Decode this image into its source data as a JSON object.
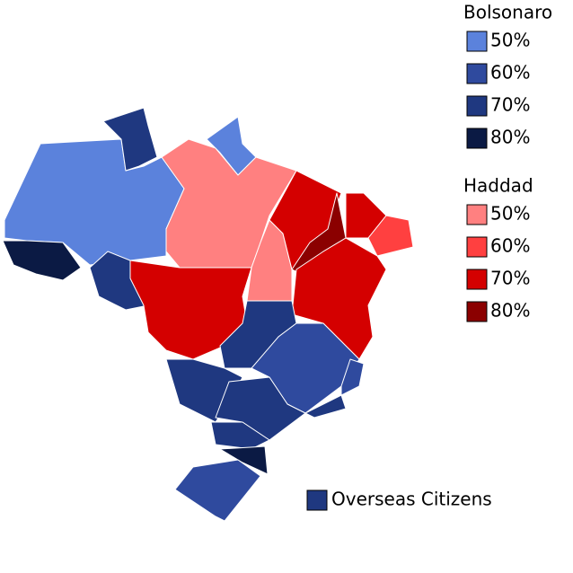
{
  "legend": [
    {
      "title": "Bolsonaro",
      "items": [
        {
          "label": "50%",
          "color": "#5b82dc"
        },
        {
          "label": "60%",
          "color": "#2f4a9e"
        },
        {
          "label": "70%",
          "color": "#1f3880"
        },
        {
          "label": "80%",
          "color": "#0b1a44"
        }
      ]
    },
    {
      "title": "Haddad",
      "items": [
        {
          "label": "50%",
          "color": "#ff8080"
        },
        {
          "label": "60%",
          "color": "#ff4040"
        },
        {
          "label": "70%",
          "color": "#d40000"
        },
        {
          "label": "80%",
          "color": "#8b0000"
        }
      ]
    }
  ],
  "overseas": {
    "label": "Overseas Citizens",
    "color": "#1f3880"
  }
}
